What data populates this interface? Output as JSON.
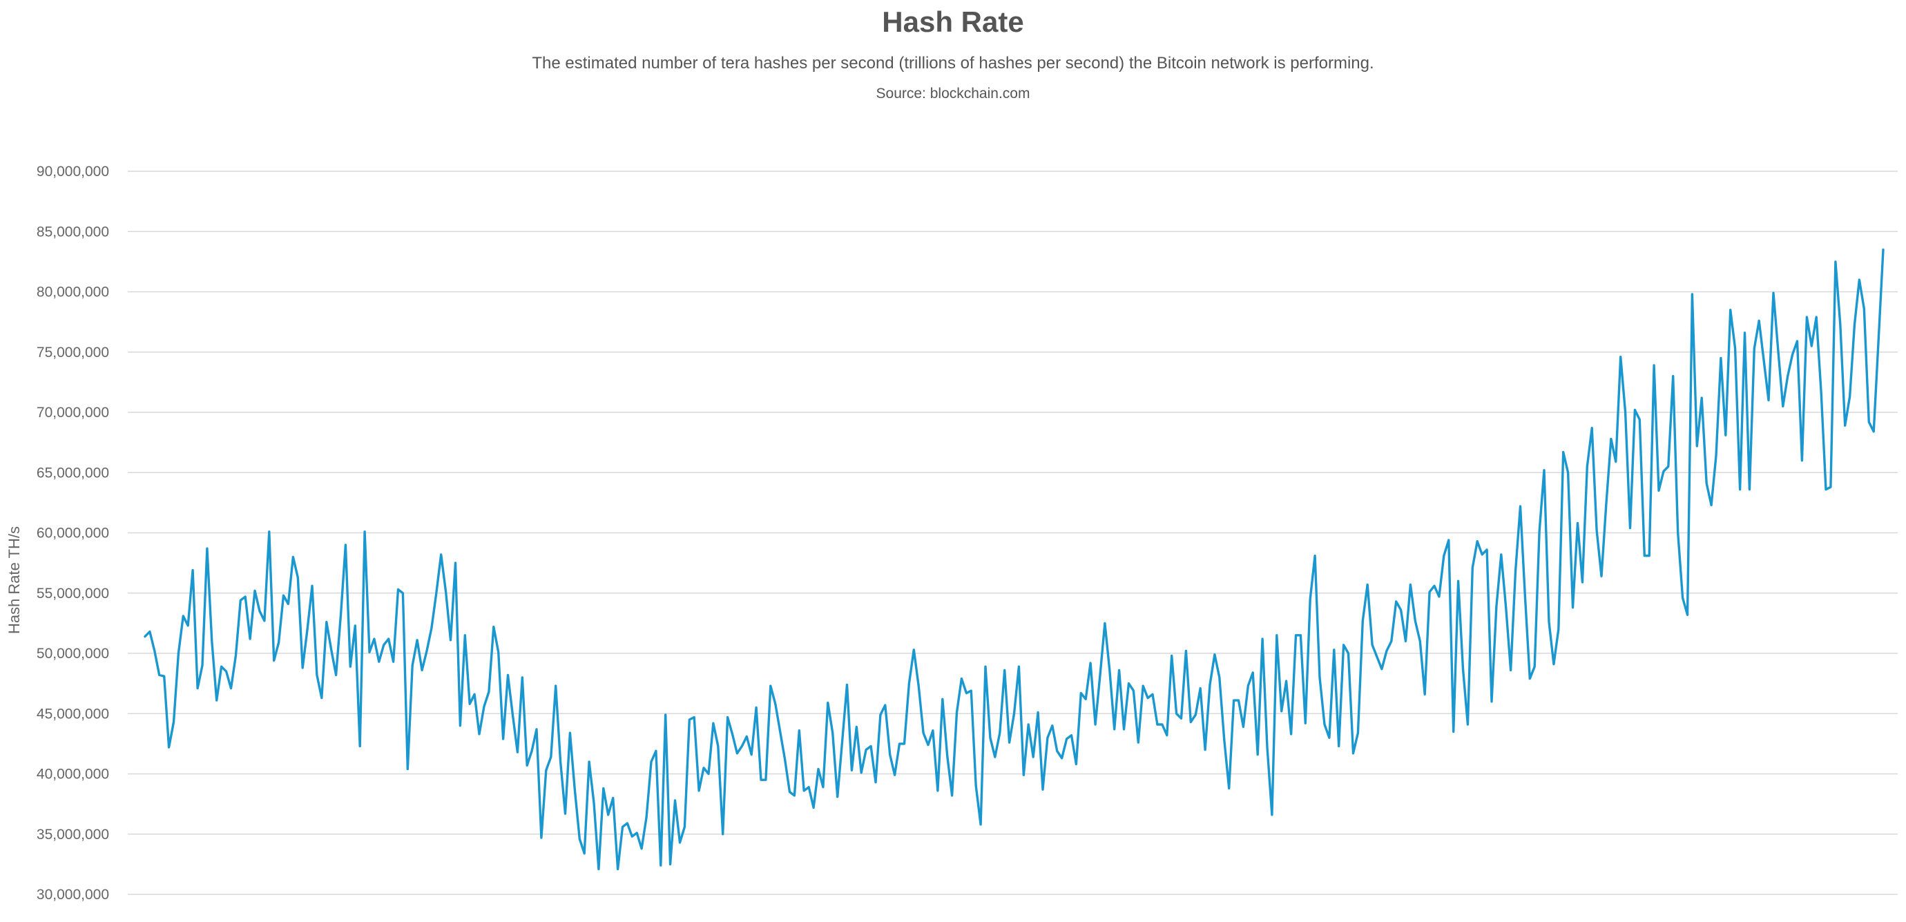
{
  "header": {
    "title": "Hash Rate",
    "subtitle": "The estimated number of tera hashes per second (trillions of hashes per second) the Bitcoin network is performing.",
    "source": "Source: blockchain.com"
  },
  "colors": {
    "series": "#1a97cf",
    "grid": "#d8d8d8",
    "text": "#555555"
  },
  "chart_data": {
    "type": "line",
    "title": "Hash Rate",
    "subtitle": "The estimated number of tera hashes per second (trillions of hashes per second) the Bitcoin network is performing.",
    "ylabel": "Hash Rate TH/s",
    "xlabel": "",
    "ylim": [
      30000000,
      90000000
    ],
    "yticks": [
      "30,000,000",
      "35,000,000",
      "40,000,000",
      "45,000,000",
      "50,000,000",
      "55,000,000",
      "60,000,000",
      "65,000,000",
      "70,000,000",
      "75,000,000",
      "80,000,000",
      "85,000,000",
      "90,000,000"
    ],
    "grid": true,
    "legend": false,
    "series": [
      {
        "values": [
          51.4,
          51.8,
          50.2,
          48.2,
          48.1,
          42.2,
          44.3,
          50.0,
          53.1,
          52.3,
          56.9,
          47.1,
          49.0,
          58.7,
          51.0,
          46.1,
          48.9,
          48.5,
          47.1,
          49.8,
          54.4,
          54.7,
          51.2,
          55.2,
          53.5,
          52.7,
          60.1,
          49.4,
          50.9,
          54.8,
          54.1,
          58.0,
          56.3,
          48.8,
          52.0,
          55.6,
          48.2,
          46.3,
          52.6,
          50.3,
          48.2,
          53.2,
          59.0,
          48.9,
          52.3,
          42.3,
          60.1,
          50.1,
          51.2,
          49.3,
          50.7,
          51.2,
          49.3,
          55.3,
          55.0,
          40.4,
          49.0,
          51.1,
          48.6,
          50.2,
          52.1,
          55.0,
          58.2,
          55.1,
          51.1,
          57.5,
          44.0,
          51.5,
          45.8,
          46.6,
          43.3,
          45.6,
          46.8,
          52.2,
          50.1,
          42.9,
          48.2,
          44.9,
          41.8,
          48.0,
          40.7,
          41.9,
          43.7,
          34.7,
          40.3,
          41.4,
          47.3,
          41.0,
          36.7,
          43.4,
          38.7,
          34.6,
          33.4,
          41.0,
          37.6,
          32.1,
          38.8,
          36.6,
          38.0,
          32.1,
          35.6,
          35.9,
          34.8,
          35.1,
          33.8,
          36.4,
          41.0,
          41.9,
          32.4,
          44.9,
          32.5,
          37.8,
          34.3,
          35.6,
          44.5,
          44.7,
          38.6,
          40.5,
          40.0,
          44.2,
          42.3,
          35.0,
          44.7,
          43.3,
          41.7,
          42.3,
          43.1,
          41.6,
          45.5,
          39.5,
          39.5,
          47.3,
          45.8,
          43.5,
          41.2,
          38.5,
          38.2,
          43.6,
          38.6,
          38.9,
          37.2,
          40.4,
          38.9,
          45.9,
          43.4,
          38.1,
          42.7,
          47.4,
          40.3,
          43.9,
          40.1,
          42.0,
          42.3,
          39.3,
          44.9,
          45.7,
          41.6,
          39.9,
          42.5,
          42.5,
          47.5,
          50.3,
          47.3,
          43.4,
          42.4,
          43.6,
          38.6,
          46.2,
          41.5,
          38.2,
          45.1,
          47.9,
          46.7,
          46.9,
          39.0,
          35.8,
          48.9,
          43.0,
          41.4,
          43.4,
          48.6,
          42.6,
          45.0,
          48.9,
          39.9,
          44.1,
          41.4,
          45.1,
          38.7,
          43.0,
          44.0,
          41.9,
          41.3,
          42.9,
          43.2,
          40.8,
          46.7,
          46.2,
          49.2,
          44.1,
          48.2,
          52.5,
          48.6,
          43.7,
          48.6,
          43.7,
          47.5,
          46.9,
          42.6,
          47.3,
          46.3,
          46.6,
          44.1,
          44.1,
          43.2,
          49.8,
          45.0,
          44.6,
          50.2,
          44.3,
          44.9,
          47.1,
          42.0,
          47.4,
          49.9,
          48.0,
          42.8,
          38.8,
          46.1,
          46.1,
          43.9,
          47.3,
          48.4,
          41.6,
          51.2,
          42.2,
          36.6,
          51.5,
          45.2,
          47.7,
          43.3,
          51.5,
          51.5,
          44.2,
          54.5,
          58.1,
          48.0,
          44.1,
          43.0,
          50.3,
          42.3,
          50.7,
          50.0,
          41.7,
          43.4,
          52.7,
          55.7,
          50.7,
          49.7,
          48.7,
          50.2,
          51.0,
          54.3,
          53.6,
          51.0,
          55.7,
          52.7,
          51.0,
          46.6,
          55.1,
          55.6,
          54.7,
          58.1,
          59.4,
          43.5,
          56.0,
          48.7,
          44.1,
          57.1,
          59.3,
          58.2,
          58.6,
          46.0,
          53.9,
          58.2,
          53.8,
          48.6,
          56.9,
          62.2,
          54.7,
          47.9,
          48.9,
          60.1,
          65.2,
          52.6,
          49.1,
          52.0,
          66.7,
          65.0,
          53.8,
          60.8,
          55.9,
          65.5,
          68.7,
          60.2,
          56.4,
          62.4,
          67.8,
          65.9,
          74.6,
          70.0,
          60.4,
          70.2,
          69.4,
          58.1,
          58.1,
          73.9,
          63.5,
          65.1,
          65.5,
          73.0,
          60.0,
          54.6,
          53.2,
          79.8,
          67.2,
          71.2,
          64.1,
          62.3,
          66.4,
          74.5,
          68.1,
          78.5,
          75.3,
          63.6,
          76.6,
          63.6,
          75.3,
          77.6,
          74.3,
          71.0,
          79.9,
          75.1,
          70.5,
          73.0,
          74.8,
          75.9,
          66.0,
          77.9,
          75.5,
          77.9,
          71.7,
          63.6,
          63.8,
          82.5,
          77.3,
          68.9,
          71.3,
          77.3,
          81.0,
          78.6,
          69.2,
          68.4,
          75.9,
          83.5
        ]
      }
    ]
  }
}
